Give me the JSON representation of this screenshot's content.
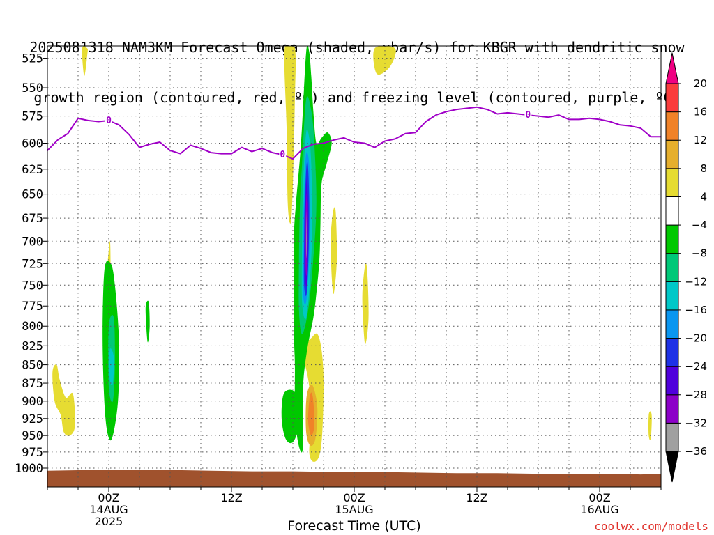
{
  "title": {
    "line1": "2025081318 NAM3KM Forecast Omega (shaded, µbar/s) for KBGR with dendritic snow",
    "line2": "growth region (contoured, red, ºC) and freezing level (contoured, purple, ºC)"
  },
  "x_axis_label": "Forecast Time (UTC)",
  "credit": "coolwx.com/models",
  "chart_data": {
    "type": "heatmap",
    "title": "2025081318 NAM3KM Forecast Omega (shaded, µbar/s) for KBGR with dendritic snow growth region (contoured, red, ºC) and freezing level (contoured, purple, ºC)",
    "xlabel": "Forecast Time (UTC)",
    "ylabel": "",
    "x_units": "forecast hours from 2025-08-13 18Z",
    "xlim": [
      0,
      60
    ],
    "y_scale": "log",
    "y_reversed": true,
    "ylim": [
      1030,
      515
    ],
    "y_ticks": [
      525,
      550,
      575,
      600,
      625,
      650,
      675,
      700,
      725,
      750,
      775,
      800,
      825,
      850,
      875,
      900,
      925,
      950,
      975,
      1000
    ],
    "x_ticks": [
      {
        "x": 6,
        "label1": "00Z",
        "label2": "14AUG",
        "label3": "2025"
      },
      {
        "x": 18,
        "label1": "12Z",
        "label2": "",
        "label3": ""
      },
      {
        "x": 30,
        "label1": "00Z",
        "label2": "15AUG",
        "label3": ""
      },
      {
        "x": 42,
        "label1": "12Z",
        "label2": "",
        "label3": ""
      },
      {
        "x": 54,
        "label1": "00Z",
        "label2": "16AUG",
        "label3": ""
      }
    ],
    "grid": true,
    "colorbar": {
      "levels": [
        -36,
        -32,
        -28,
        -24,
        -20,
        -16,
        -12,
        -8,
        -4,
        4,
        8,
        12,
        16,
        20
      ],
      "colors": [
        "#000000",
        "#a0a0a0",
        "#8c00c8",
        "#5000dc",
        "#1e32e6",
        "#0a96f0",
        "#00c8c8",
        "#00c878",
        "#00c800",
        "#ffffff",
        "#e6dc32",
        "#e6af2d",
        "#f08228",
        "#fa3c3c",
        "#f00082"
      ]
    },
    "shaded_regions": [
      {
        "name": "downward omega 4-8",
        "color": "#e6dc32",
        "points": [
          [
            3.4,
            517
          ],
          [
            3.6,
            540
          ],
          [
            3.9,
            522
          ],
          [
            3.9,
            517
          ]
        ]
      },
      {
        "name": "downward omega 4-8",
        "color": "#e6dc32",
        "points": [
          [
            32.0,
            517
          ],
          [
            32.2,
            538
          ],
          [
            33.5,
            532
          ],
          [
            34.0,
            517
          ]
        ]
      },
      {
        "name": "downward omega 4-8",
        "color": "#e6dc32",
        "points": [
          [
            23.2,
            517
          ],
          [
            23.4,
            590
          ],
          [
            23.5,
            660
          ],
          [
            23.8,
            680
          ],
          [
            24.0,
            640
          ],
          [
            24.2,
            560
          ],
          [
            24.2,
            517
          ]
        ]
      },
      {
        "name": "downward omega 4-8",
        "color": "#e6dc32",
        "points": [
          [
            24.8,
            830
          ],
          [
            25.2,
            850
          ],
          [
            25.6,
            880
          ],
          [
            25.8,
            930
          ],
          [
            25.6,
            975
          ],
          [
            26.0,
            990
          ],
          [
            26.6,
            980
          ],
          [
            26.9,
            940
          ],
          [
            27.0,
            870
          ],
          [
            26.8,
            830
          ],
          [
            26.4,
            810
          ],
          [
            25.8,
            815
          ]
        ]
      },
      {
        "name": "downward omega 8-12",
        "color": "#e6af2d",
        "points": [
          [
            25.3,
            900
          ],
          [
            25.3,
            945
          ],
          [
            25.7,
            965
          ],
          [
            26.2,
            955
          ],
          [
            26.4,
            910
          ],
          [
            26.0,
            880
          ],
          [
            25.6,
            880
          ]
        ]
      },
      {
        "name": "downward omega 12-16",
        "color": "#f08228",
        "points": [
          [
            25.6,
            900
          ],
          [
            25.5,
            930
          ],
          [
            25.8,
            950
          ],
          [
            26.1,
            935
          ],
          [
            26.0,
            900
          ],
          [
            25.8,
            888
          ]
        ]
      },
      {
        "name": "downward omega 4-8",
        "color": "#e6dc32",
        "points": [
          [
            27.7,
            700
          ],
          [
            27.8,
            740
          ],
          [
            28.0,
            760
          ],
          [
            28.3,
            720
          ],
          [
            28.2,
            670
          ],
          [
            28.0,
            665
          ],
          [
            27.8,
            680
          ]
        ]
      },
      {
        "name": "downward omega 4-8",
        "color": "#e6dc32",
        "points": [
          [
            30.8,
            760
          ],
          [
            30.9,
            800
          ],
          [
            31.1,
            823
          ],
          [
            31.4,
            790
          ],
          [
            31.3,
            740
          ],
          [
            31.1,
            725
          ]
        ]
      },
      {
        "name": "downward omega 4-8",
        "color": "#e6dc32",
        "points": [
          [
            5.7,
            760
          ],
          [
            5.8,
            790
          ],
          [
            6.1,
            808
          ],
          [
            6.3,
            780
          ],
          [
            6.2,
            740
          ],
          [
            6.1,
            700
          ]
        ]
      },
      {
        "name": "downward omega 4-8",
        "color": "#e6dc32",
        "points": [
          [
            0.5,
            860
          ],
          [
            0.7,
            900
          ],
          [
            1.3,
            920
          ],
          [
            1.6,
            945
          ],
          [
            2.2,
            950
          ],
          [
            2.7,
            935
          ],
          [
            2.5,
            890
          ],
          [
            1.8,
            895
          ],
          [
            1.2,
            870
          ],
          [
            0.9,
            850
          ]
        ]
      },
      {
        "name": "downward omega 4-8",
        "color": "#e6dc32",
        "points": [
          [
            58.8,
            920
          ],
          [
            58.8,
            950
          ],
          [
            59.0,
            955
          ],
          [
            59.1,
            925
          ],
          [
            59.0,
            915
          ]
        ]
      },
      {
        "name": "upward omega -4 to -8",
        "color": "#00c800",
        "points": [
          [
            5.6,
            730
          ],
          [
            5.4,
            800
          ],
          [
            5.5,
            880
          ],
          [
            5.8,
            940
          ],
          [
            6.3,
            955
          ],
          [
            6.9,
            900
          ],
          [
            7.0,
            820
          ],
          [
            6.6,
            750
          ],
          [
            6.2,
            725
          ]
        ]
      },
      {
        "name": "upward omega -8 to -12",
        "color": "#00c878",
        "points": [
          [
            6.0,
            800
          ],
          [
            6.0,
            880
          ],
          [
            6.4,
            900
          ],
          [
            6.6,
            850
          ],
          [
            6.5,
            790
          ]
        ]
      },
      {
        "name": "upward omega -12 to -16",
        "color": "#00c8c8",
        "points": [
          [
            6.1,
            830
          ],
          [
            6.1,
            870
          ],
          [
            6.4,
            875
          ],
          [
            6.5,
            840
          ]
        ]
      },
      {
        "name": "upward omega -4 to -8",
        "color": "#00c800",
        "points": [
          [
            9.6,
            778
          ],
          [
            9.8,
            820
          ],
          [
            10.0,
            800
          ],
          [
            9.9,
            770
          ]
        ]
      },
      {
        "name": "upward omega -4 to -8",
        "color": "#00c800",
        "points": [
          [
            23.1,
            890
          ],
          [
            22.9,
            925
          ],
          [
            23.3,
            955
          ],
          [
            24.0,
            960
          ],
          [
            24.6,
            935
          ],
          [
            24.5,
            900
          ],
          [
            24.0,
            885
          ]
        ]
      },
      {
        "name": "upward omega -4 to -8",
        "color": "#00c800",
        "points": [
          [
            25.3,
            520
          ],
          [
            24.8,
            600
          ],
          [
            24.3,
            660
          ],
          [
            24.1,
            700
          ],
          [
            24.1,
            800
          ],
          [
            24.2,
            850
          ],
          [
            24.2,
            900
          ],
          [
            24.4,
            950
          ],
          [
            24.8,
            975
          ],
          [
            25.0,
            960
          ],
          [
            25.0,
            880
          ],
          [
            25.4,
            830
          ],
          [
            26.0,
            790
          ],
          [
            26.3,
            760
          ],
          [
            26.6,
            720
          ],
          [
            26.7,
            680
          ],
          [
            26.8,
            640
          ],
          [
            27.3,
            620
          ],
          [
            27.8,
            600
          ],
          [
            27.4,
            590
          ],
          [
            26.8,
            595
          ],
          [
            26.3,
            600
          ],
          [
            26.0,
            570
          ],
          [
            25.8,
            540
          ],
          [
            25.6,
            520
          ]
        ]
      },
      {
        "name": "upward omega -8 to -12",
        "color": "#00c878",
        "points": [
          [
            25.3,
            560
          ],
          [
            24.9,
            620
          ],
          [
            24.7,
            660
          ],
          [
            24.6,
            720
          ],
          [
            24.6,
            780
          ],
          [
            24.9,
            810
          ],
          [
            25.5,
            780
          ],
          [
            26.0,
            720
          ],
          [
            26.3,
            660
          ],
          [
            26.1,
            600
          ],
          [
            25.8,
            570
          ]
        ]
      },
      {
        "name": "upward omega -12 to -16",
        "color": "#00c8c8",
        "points": [
          [
            25.3,
            590
          ],
          [
            25.0,
            640
          ],
          [
            24.9,
            700
          ],
          [
            24.9,
            770
          ],
          [
            25.3,
            790
          ],
          [
            25.7,
            740
          ],
          [
            25.9,
            680
          ],
          [
            25.8,
            620
          ],
          [
            25.6,
            595
          ]
        ]
      },
      {
        "name": "upward omega -16 to -20",
        "color": "#0a96f0",
        "points": [
          [
            25.3,
            610
          ],
          [
            25.1,
            650
          ],
          [
            25.0,
            700
          ],
          [
            25.0,
            760
          ],
          [
            25.3,
            770
          ],
          [
            25.6,
            720
          ],
          [
            25.7,
            660
          ],
          [
            25.6,
            620
          ]
        ]
      },
      {
        "name": "upward omega -20 to -24",
        "color": "#1e32e6",
        "points": [
          [
            25.35,
            620
          ],
          [
            25.15,
            660
          ],
          [
            25.1,
            700
          ],
          [
            25.1,
            750
          ],
          [
            25.35,
            760
          ],
          [
            25.55,
            710
          ],
          [
            25.6,
            660
          ],
          [
            25.5,
            625
          ]
        ]
      },
      {
        "name": "upward omega -24 to -28",
        "color": "#5000dc",
        "points": [
          [
            25.35,
            635
          ],
          [
            25.2,
            670
          ],
          [
            25.15,
            720
          ],
          [
            25.2,
            745
          ],
          [
            25.4,
            748
          ],
          [
            25.5,
            700
          ],
          [
            25.5,
            660
          ]
        ]
      },
      {
        "name": "upward omega -28 to -32",
        "color": "#8c00c8",
        "points": [
          [
            25.35,
            650
          ],
          [
            25.25,
            680
          ],
          [
            25.25,
            730
          ],
          [
            25.4,
            735
          ],
          [
            25.45,
            690
          ],
          [
            25.45,
            660
          ]
        ]
      },
      {
        "name": "upward omega -32 to -36",
        "color": "#a0a0a0",
        "points": [
          [
            25.38,
            665
          ],
          [
            25.32,
            690
          ],
          [
            25.33,
            715
          ],
          [
            25.42,
            718
          ],
          [
            25.43,
            690
          ]
        ]
      }
    ],
    "freezing_level": {
      "name": "freezing level (0 ºC)",
      "color": "#a000c8",
      "label": "0",
      "labels_at": [
        6.0,
        23.0,
        47.0
      ],
      "points": [
        [
          0.0,
          607
        ],
        [
          1.0,
          597
        ],
        [
          2.0,
          591
        ],
        [
          3.0,
          577
        ],
        [
          4.0,
          579
        ],
        [
          5.0,
          580
        ],
        [
          6.0,
          579
        ],
        [
          7.0,
          583
        ],
        [
          8.0,
          592
        ],
        [
          9.0,
          604
        ],
        [
          10.0,
          601
        ],
        [
          11.0,
          599
        ],
        [
          12.0,
          607
        ],
        [
          13.0,
          610
        ],
        [
          14.0,
          602
        ],
        [
          15.0,
          605
        ],
        [
          16.0,
          609
        ],
        [
          17.0,
          610
        ],
        [
          18.0,
          610
        ],
        [
          19.0,
          604
        ],
        [
          20.0,
          608
        ],
        [
          21.0,
          605
        ],
        [
          22.0,
          609
        ],
        [
          23.0,
          611
        ],
        [
          24.0,
          615
        ],
        [
          25.0,
          605
        ],
        [
          26.0,
          601
        ],
        [
          27.0,
          600
        ],
        [
          28.0,
          597
        ],
        [
          29.0,
          595
        ],
        [
          30.0,
          599
        ],
        [
          31.0,
          600
        ],
        [
          32.0,
          604
        ],
        [
          33.0,
          598
        ],
        [
          34.0,
          596
        ],
        [
          35.0,
          591
        ],
        [
          36.0,
          590
        ],
        [
          37.0,
          580
        ],
        [
          38.0,
          574
        ],
        [
          39.0,
          571
        ],
        [
          40.0,
          569
        ],
        [
          41.0,
          568
        ],
        [
          42.0,
          567
        ],
        [
          43.0,
          569
        ],
        [
          44.0,
          573
        ],
        [
          45.0,
          572
        ],
        [
          46.0,
          573
        ],
        [
          47.0,
          574
        ],
        [
          48.0,
          575
        ],
        [
          49.0,
          576
        ],
        [
          50.0,
          574
        ],
        [
          51.0,
          578
        ],
        [
          52.0,
          578
        ],
        [
          53.0,
          577
        ],
        [
          54.0,
          578
        ],
        [
          55.0,
          580
        ],
        [
          56.0,
          583
        ],
        [
          57.0,
          584
        ],
        [
          58.0,
          586
        ],
        [
          59.0,
          594
        ],
        [
          60.0,
          594
        ]
      ]
    },
    "surface_pressure": {
      "name": "terrain / surface pressure",
      "color": "#a0522d",
      "points": [
        [
          0.0,
          1004
        ],
        [
          4.0,
          1003
        ],
        [
          8.0,
          1003
        ],
        [
          12.0,
          1003
        ],
        [
          16.0,
          1004
        ],
        [
          20.0,
          1005
        ],
        [
          24.0,
          1005
        ],
        [
          28.0,
          1006
        ],
        [
          32.0,
          1006
        ],
        [
          36.0,
          1007
        ],
        [
          40.0,
          1008
        ],
        [
          44.0,
          1008
        ],
        [
          48.0,
          1009
        ],
        [
          52.0,
          1009
        ],
        [
          56.0,
          1009
        ],
        [
          58.0,
          1010
        ],
        [
          60.0,
          1009
        ]
      ]
    }
  }
}
